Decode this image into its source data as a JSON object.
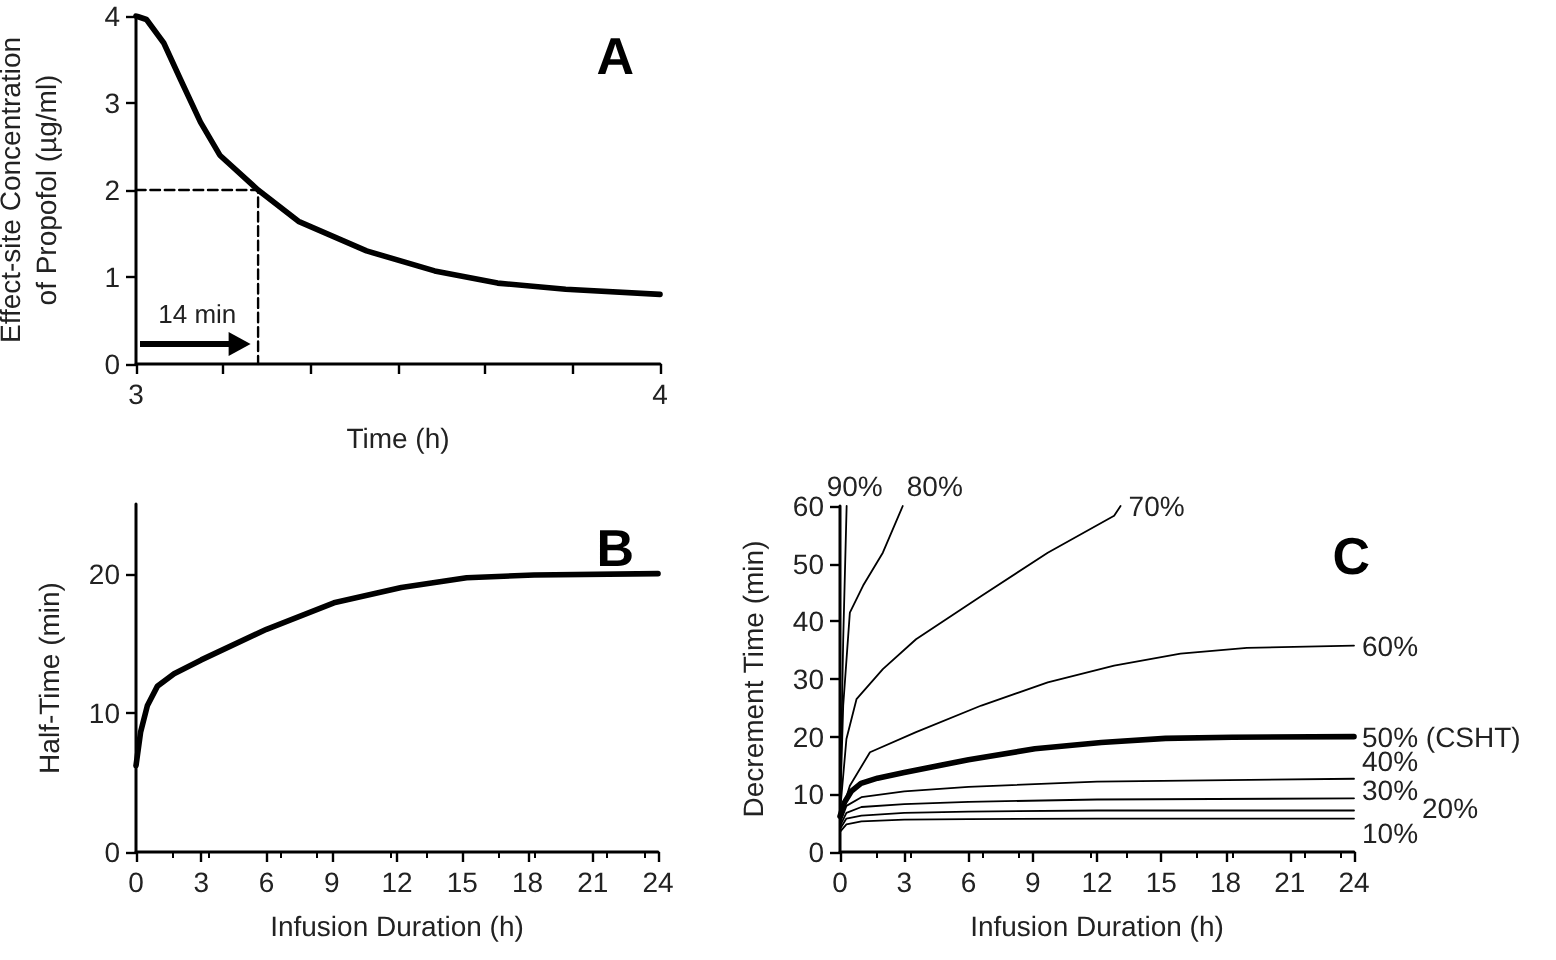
{
  "chart_data": [
    {
      "type": "line",
      "title": "A",
      "xlabel": "Time (h)",
      "ylabel": "Effect-site Concentration of Propofol (µg/ml)",
      "xlim": [
        3,
        4
      ],
      "xticks": [
        3,
        {
          "value": 3.1667,
          "label": null
        },
        {
          "value": 3.3333,
          "label": null
        },
        {
          "value": 3.5,
          "label": null
        },
        {
          "value": 3.6667,
          "label": null
        },
        {
          "value": 3.8333,
          "label": null
        },
        4
      ],
      "ylim": [
        0,
        4
      ],
      "yticks": [
        0,
        1,
        2,
        3,
        4
      ],
      "grid": false,
      "marker": "none",
      "series": [
        {
          "color": "#000000",
          "x": [
            3,
            3.02,
            3.053,
            3.085,
            3.123,
            3.16,
            3.233,
            3.31,
            3.44,
            3.57,
            3.69,
            3.82,
            4
          ],
          "values": [
            4,
            3.96,
            3.69,
            3.27,
            2.78,
            2.4,
            2,
            1.64,
            1.3,
            1.07,
            0.93,
            0.86,
            0.8
          ]
        },
        {
          "color": "#000000",
          "line_style": "dashed",
          "x": [
            3,
            3.233,
            3.233
          ],
          "values": [
            2,
            2,
            0
          ]
        }
      ],
      "annotations": [
        "14 min"
      ]
    },
    {
      "type": "line",
      "title": "B",
      "xlabel": "Infusion Duration (h)",
      "ylabel": "Half-Time (min)",
      "xlim": [
        0,
        24
      ],
      "xticks": [
        0,
        3,
        6,
        9,
        12,
        15,
        18,
        21,
        24
      ],
      "ylim": [
        0,
        25
      ],
      "yticks": [
        0,
        10,
        20
      ],
      "grid": false,
      "marker": "none",
      "series": [
        {
          "color": "#000000",
          "x": [
            0,
            0.21,
            0.52,
            0.98,
            1.75,
            3,
            6,
            9.1,
            12.2,
            15.2,
            18.3,
            24
          ],
          "values": [
            6.2,
            8.6,
            10.5,
            11.9,
            12.8,
            13.8,
            16,
            17.9,
            19,
            19.7,
            19.9,
            20
          ]
        }
      ]
    },
    {
      "type": "line",
      "title": "C",
      "xlabel": "Infusion Duration (h)",
      "ylabel": "Decrement Time (min)",
      "xlim": [
        0,
        24
      ],
      "xticks": [
        0,
        3,
        6,
        9,
        12,
        15,
        18,
        21,
        24
      ],
      "ylim": [
        0,
        60
      ],
      "yticks": [
        0,
        10,
        20,
        30,
        40,
        50,
        60
      ],
      "grid": false,
      "marker": "none",
      "series": [
        {
          "name": "10%",
          "color": "#000000",
          "x": [
            0,
            0.3,
            1,
            3,
            6,
            12,
            24
          ],
          "values": [
            3.5,
            4.8,
            5.3,
            5.6,
            5.7,
            5.8,
            5.8
          ]
        },
        {
          "name": "20%",
          "color": "#000000",
          "x": [
            0,
            0.3,
            1,
            3,
            6,
            12,
            24
          ],
          "values": [
            4,
            5.8,
            6.3,
            6.8,
            7,
            7.2,
            7.2
          ]
        },
        {
          "name": "30%",
          "color": "#000000",
          "x": [
            0,
            0.3,
            1,
            3,
            6,
            12,
            24
          ],
          "values": [
            4.5,
            6.8,
            7.8,
            8.3,
            8.7,
            9.1,
            9.3
          ]
        },
        {
          "name": "40%",
          "color": "#000000",
          "x": [
            0,
            0.3,
            1,
            3,
            6,
            12,
            24
          ],
          "values": [
            5,
            8,
            9.5,
            10.5,
            11.3,
            12.2,
            12.7
          ]
        },
        {
          "name": "50% (CSHT)",
          "color": "#000000",
          "x": [
            0,
            0.21,
            0.52,
            0.98,
            1.75,
            3,
            6,
            9.1,
            12.2,
            15.2,
            18.3,
            24
          ],
          "values": [
            6.2,
            8.6,
            10.5,
            11.9,
            12.8,
            13.8,
            16,
            17.9,
            19,
            19.7,
            19.9,
            20
          ]
        },
        {
          "name": "60%",
          "color": "#000000",
          "x": [
            0,
            0.46,
            1.4,
            3.55,
            6.6,
            9.7,
            12.8,
            15.9,
            19,
            24
          ],
          "values": [
            6,
            11.5,
            17.3,
            20.8,
            25.4,
            29.4,
            32.3,
            34.4,
            35.4,
            35.8
          ]
        },
        {
          "name": "70%",
          "color": "#000000",
          "x": [
            0,
            0.3,
            0.77,
            2,
            3.55,
            6.6,
            9.7,
            12.8,
            13.1
          ],
          "values": [
            6.9,
            19.6,
            26.5,
            31.7,
            36.9,
            44.4,
            51.9,
            58.3,
            60
          ]
        },
        {
          "name": "80%",
          "color": "#000000",
          "x": [
            0,
            0.15,
            0.46,
            1.08,
            2,
            2.93
          ],
          "values": [
            6.9,
            25.4,
            41.5,
            46.2,
            51.9,
            60
          ]
        },
        {
          "name": "90%",
          "color": "#000000",
          "x": [
            0,
            0.15,
            0.31
          ],
          "values": [
            6.9,
            36.9,
            60
          ]
        }
      ]
    }
  ]
}
